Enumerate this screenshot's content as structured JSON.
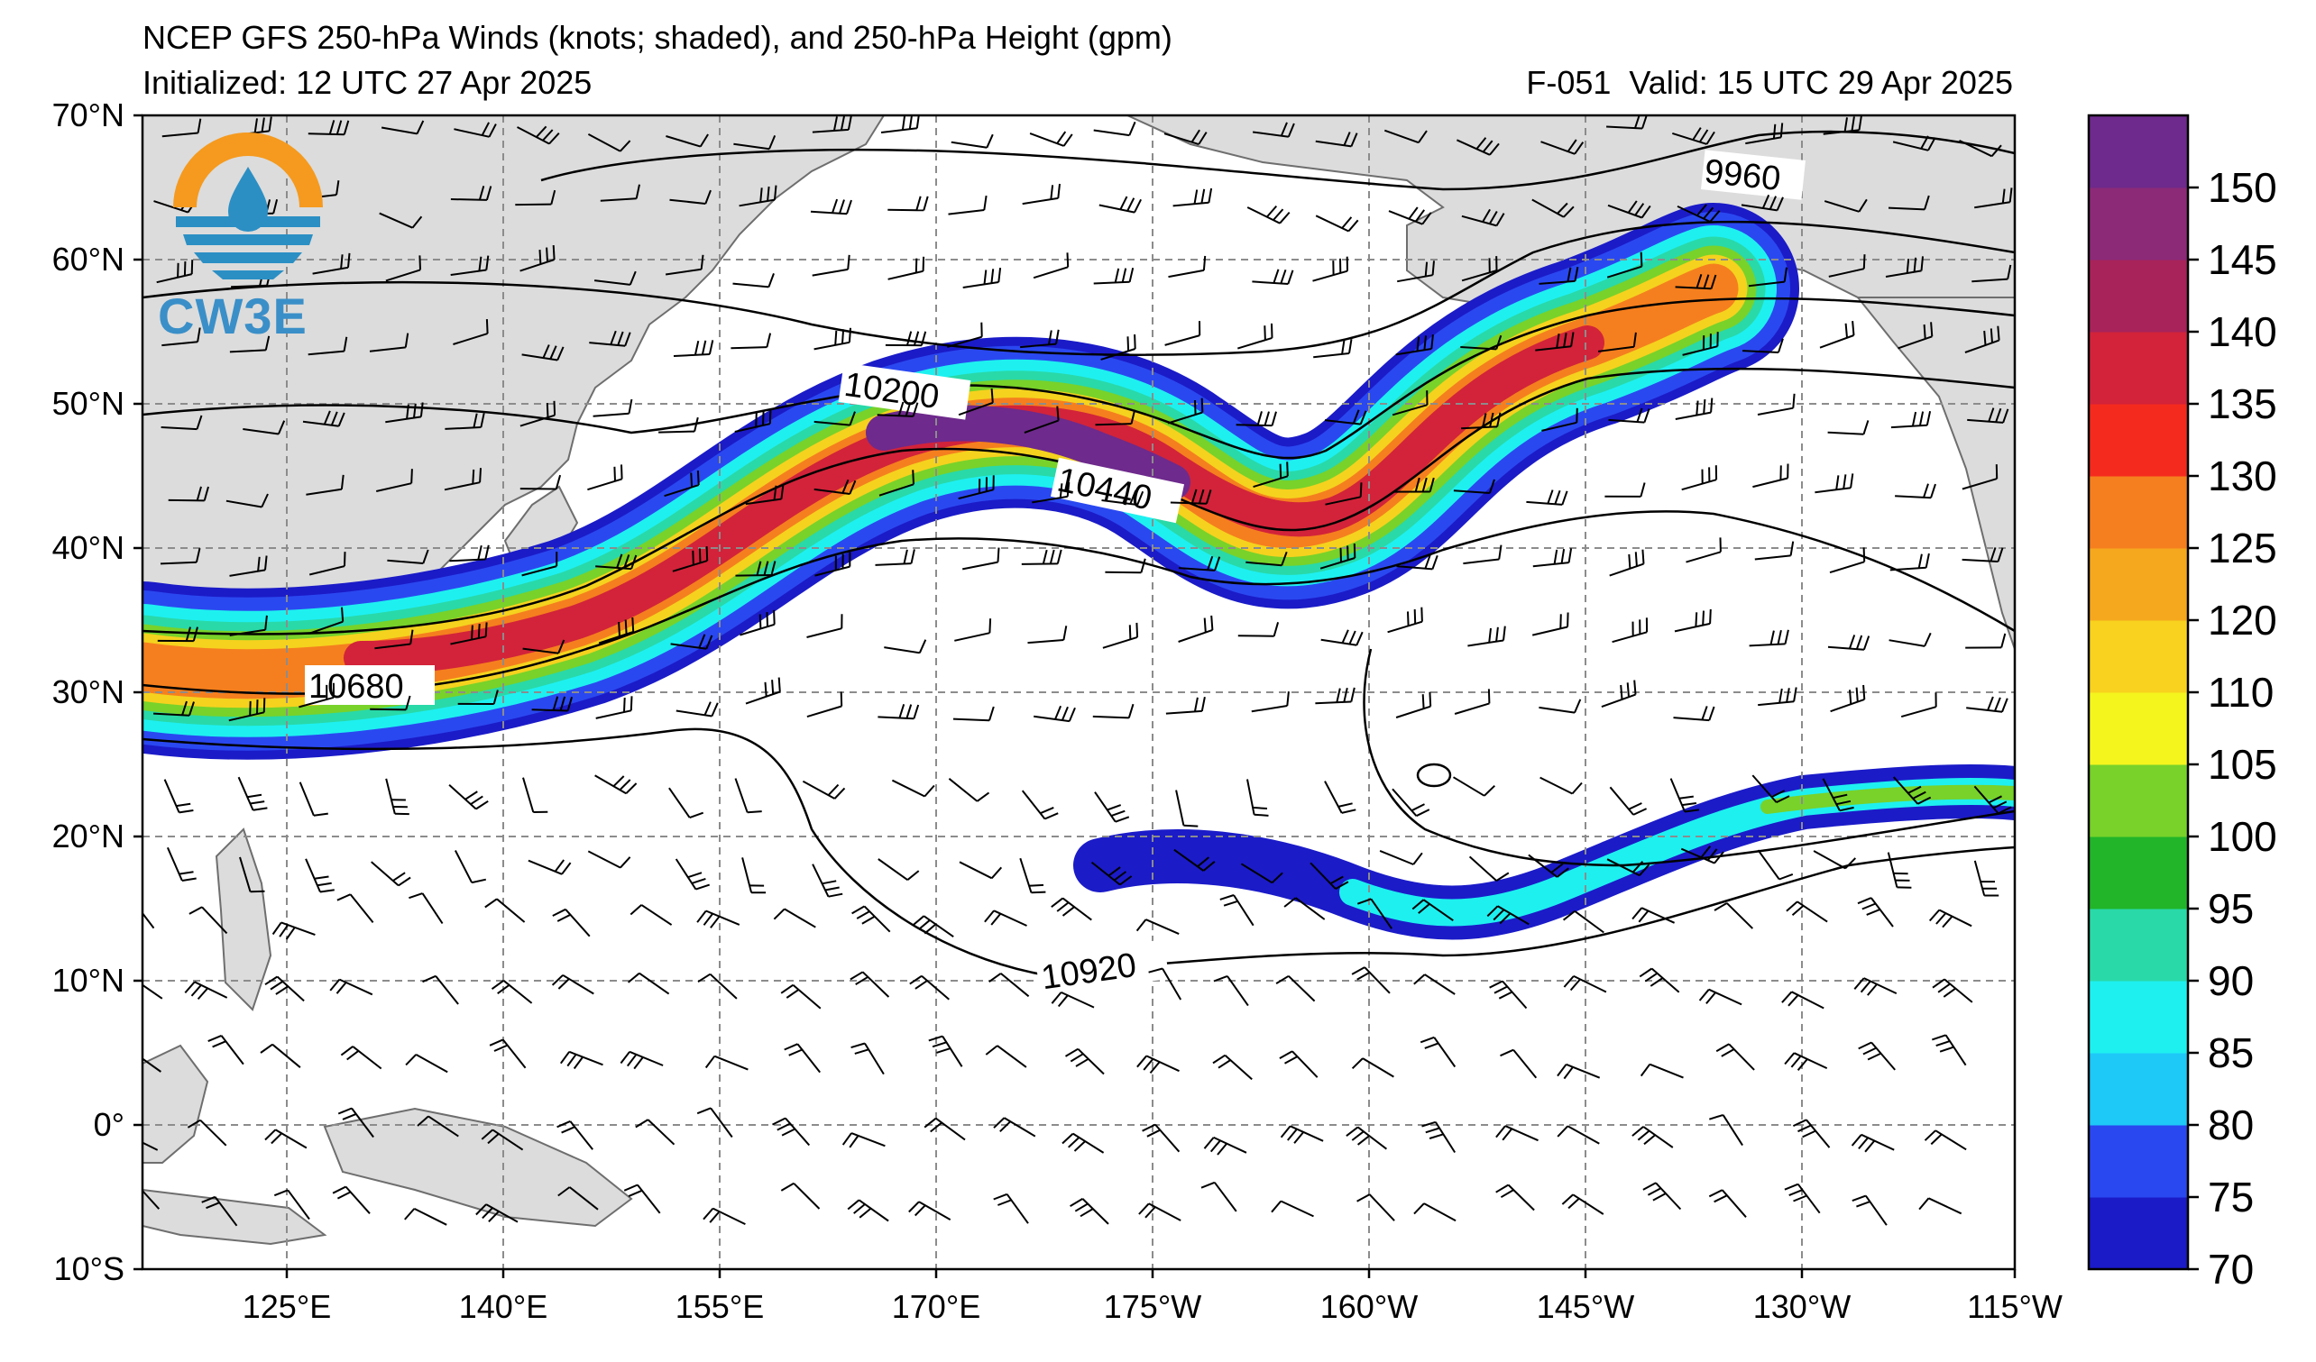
{
  "header": {
    "title": "NCEP GFS 250-hPa Winds (knots; shaded), and 250-hPa Height (gpm)",
    "initialized": "Initialized: 12 UTC 27 Apr 2025",
    "forecast_hour": "F-051",
    "valid": "Valid: 15 UTC 29 Apr 2025"
  },
  "logo": {
    "text": "CW3E",
    "icon": "water-drop-sun-icon"
  },
  "axes": {
    "lat_labels": [
      "70°N",
      "60°N",
      "50°N",
      "40°N",
      "30°N",
      "20°N",
      "10°N",
      "0°",
      "10°S"
    ],
    "lon_labels": [
      "125°E",
      "140°E",
      "155°E",
      "170°E",
      "175°W",
      "160°W",
      "145°W",
      "130°W",
      "115°W"
    ]
  },
  "colorbar": {
    "levels": [
      "70",
      "75",
      "80",
      "85",
      "90",
      "95",
      "100",
      "105",
      "110",
      "120",
      "125",
      "130",
      "135",
      "140",
      "145",
      "150"
    ],
    "colors": [
      "#1b1bc8",
      "#2a48f0",
      "#1ec8f7",
      "#1ef0f0",
      "#29d9a8",
      "#22b52a",
      "#78d22a",
      "#f5f51e",
      "#f8d21e",
      "#f5a81e",
      "#f57f1e",
      "#f52a1e",
      "#d2233a",
      "#a8235a",
      "#8c2a78",
      "#6e2a8c"
    ]
  },
  "contour_labels": [
    "9960",
    "10200",
    "10440",
    "10680",
    "10920"
  ],
  "colors": {
    "land": "#dcdcdc",
    "coast": "#6e6e6e",
    "grid": "#8c8c8c"
  }
}
